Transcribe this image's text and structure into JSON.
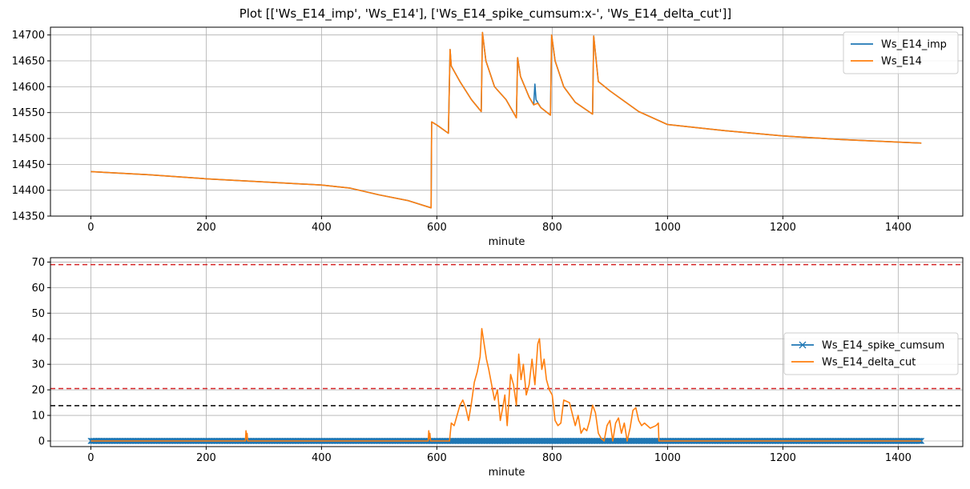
{
  "figure": {
    "title": "Plot [['Ws_E14_imp', 'Ws_E14'], ['Ws_E14_spike_cumsum:x-', 'Ws_E14_delta_cut']]"
  },
  "colors": {
    "blue": "#1f77b4",
    "orange": "#ff7f0e",
    "red": "#d62728",
    "black": "#000000",
    "grid": "#b0b0b0"
  },
  "chart_data": [
    {
      "type": "line",
      "xlabel": "minute",
      "ylabel": "",
      "xlim": [
        -70,
        1512
      ],
      "ylim": [
        14350,
        14715
      ],
      "xticks": [
        0,
        200,
        400,
        600,
        800,
        1000,
        1200,
        1400
      ],
      "yticks": [
        14350,
        14400,
        14450,
        14500,
        14550,
        14600,
        14650,
        14700
      ],
      "grid": true,
      "legend_position": "top-right",
      "series": [
        {
          "name": "Ws_E14_imp",
          "color": "#1f77b4",
          "x": [
            0,
            100,
            200,
            300,
            400,
            450,
            500,
            550,
            590,
            591,
            600,
            620,
            623,
            625,
            640,
            660,
            677,
            679,
            685,
            700,
            720,
            738,
            740,
            745,
            760,
            768,
            770,
            772,
            780,
            797,
            799,
            805,
            820,
            840,
            870,
            872,
            880,
            900,
            950,
            1000,
            1100,
            1200,
            1300,
            1440
          ],
          "y": [
            14436,
            14430,
            14422,
            14416,
            14410,
            14404,
            14391,
            14380,
            14366,
            14532,
            14526,
            14510,
            14672,
            14640,
            14610,
            14575,
            14552,
            14705,
            14650,
            14600,
            14575,
            14540,
            14656,
            14620,
            14580,
            14565,
            14605,
            14575,
            14560,
            14545,
            14700,
            14650,
            14600,
            14570,
            14547,
            14698,
            14610,
            14592,
            14552,
            14527,
            14515,
            14505,
            14498,
            14491
          ]
        },
        {
          "name": "Ws_E14",
          "color": "#ff7f0e",
          "x": [
            0,
            100,
            200,
            300,
            400,
            450,
            500,
            550,
            590,
            591,
            600,
            620,
            623,
            625,
            640,
            660,
            677,
            679,
            685,
            700,
            720,
            738,
            740,
            745,
            760,
            768,
            775,
            780,
            797,
            799,
            805,
            820,
            840,
            870,
            872,
            880,
            900,
            950,
            1000,
            1100,
            1200,
            1300,
            1440
          ],
          "y": [
            14436,
            14430,
            14422,
            14416,
            14410,
            14404,
            14391,
            14380,
            14366,
            14532,
            14526,
            14510,
            14672,
            14640,
            14610,
            14575,
            14552,
            14705,
            14650,
            14600,
            14575,
            14540,
            14656,
            14620,
            14580,
            14565,
            14568,
            14560,
            14545,
            14700,
            14650,
            14600,
            14570,
            14547,
            14698,
            14610,
            14592,
            14552,
            14527,
            14515,
            14505,
            14498,
            14491
          ]
        }
      ]
    },
    {
      "type": "line",
      "xlabel": "minute",
      "ylabel": "",
      "xlim": [
        -70,
        1512
      ],
      "ylim": [
        -2.2,
        71.7
      ],
      "xticks": [
        0,
        200,
        400,
        600,
        800,
        1000,
        1200,
        1400
      ],
      "yticks": [
        0,
        10,
        20,
        30,
        40,
        50,
        60,
        70
      ],
      "grid": true,
      "legend_position": "center-right",
      "hlines": [
        {
          "y": 69,
          "color": "#d62728",
          "style": "dashed"
        },
        {
          "y": 20.5,
          "color": "#d62728",
          "style": "dashed"
        },
        {
          "y": 13.8,
          "color": "#000000",
          "style": "dashed"
        }
      ],
      "series": [
        {
          "name": "Ws_E14_spike_cumsum",
          "color": "#1f77b4",
          "marker": "x",
          "x": [
            0,
            1440
          ],
          "y": [
            0,
            0
          ]
        },
        {
          "name": "Ws_E14_delta_cut",
          "color": "#ff7f0e",
          "x": [
            0,
            268,
            269,
            270,
            271,
            272,
            585,
            586,
            587,
            588,
            589,
            622,
            625,
            630,
            640,
            645,
            650,
            655,
            660,
            665,
            670,
            675,
            678,
            682,
            686,
            690,
            700,
            705,
            710,
            715,
            718,
            722,
            728,
            733,
            738,
            742,
            746,
            750,
            755,
            760,
            765,
            770,
            775,
            778,
            782,
            786,
            790,
            795,
            800,
            805,
            810,
            815,
            820,
            830,
            840,
            845,
            850,
            855,
            860,
            865,
            870,
            875,
            880,
            885,
            890,
            895,
            900,
            905,
            910,
            915,
            920,
            925,
            930,
            935,
            940,
            945,
            950,
            955,
            960,
            970,
            980,
            984,
            985,
            1440
          ],
          "y": [
            0,
            0,
            4,
            1,
            3,
            0,
            0,
            4,
            1,
            3,
            0,
            0,
            7,
            6,
            14,
            16,
            13,
            8,
            15,
            23,
            27,
            33,
            44,
            38,
            32,
            28,
            16,
            20,
            8,
            14,
            18,
            6,
            26,
            22,
            14,
            34,
            24,
            30,
            18,
            22,
            32,
            22,
            38,
            40,
            28,
            32,
            24,
            20,
            18,
            8,
            6,
            7,
            16,
            15,
            6,
            10,
            3,
            5,
            4,
            8,
            14,
            11,
            3,
            1,
            0,
            6,
            8,
            0,
            7,
            9,
            3,
            7,
            0,
            5,
            12,
            13,
            8,
            6,
            7,
            5,
            6,
            7,
            0,
            0
          ]
        }
      ]
    }
  ]
}
